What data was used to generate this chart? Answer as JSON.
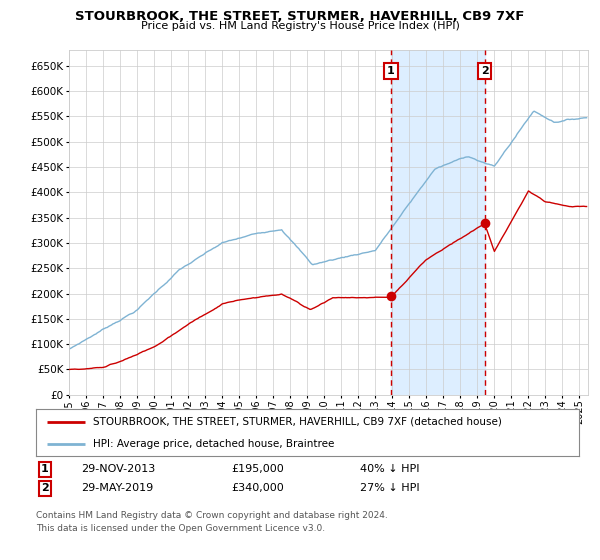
{
  "title": "STOURBROOK, THE STREET, STURMER, HAVERHILL, CB9 7XF",
  "subtitle": "Price paid vs. HM Land Registry's House Price Index (HPI)",
  "legend_line1": "STOURBROOK, THE STREET, STURMER, HAVERHILL, CB9 7XF (detached house)",
  "legend_line2": "HPI: Average price, detached house, Braintree",
  "annotation1_label": "1",
  "annotation1_date": "29-NOV-2013",
  "annotation1_price": "£195,000",
  "annotation1_hpi": "40% ↓ HPI",
  "annotation1_year": 2013.92,
  "annotation1_value": 195000,
  "annotation2_label": "2",
  "annotation2_date": "29-MAY-2019",
  "annotation2_price": "£340,000",
  "annotation2_hpi": "27% ↓ HPI",
  "annotation2_year": 2019.42,
  "annotation2_value": 340000,
  "red_color": "#cc0000",
  "blue_color": "#7fb3d3",
  "shade_color": "#ddeeff",
  "grid_color": "#cccccc",
  "background_color": "#ffffff",
  "ylim": [
    0,
    680000
  ],
  "xlim_start": 1995.0,
  "xlim_end": 2025.5,
  "footer1": "Contains HM Land Registry data © Crown copyright and database right 2024.",
  "footer2": "This data is licensed under the Open Government Licence v3.0."
}
